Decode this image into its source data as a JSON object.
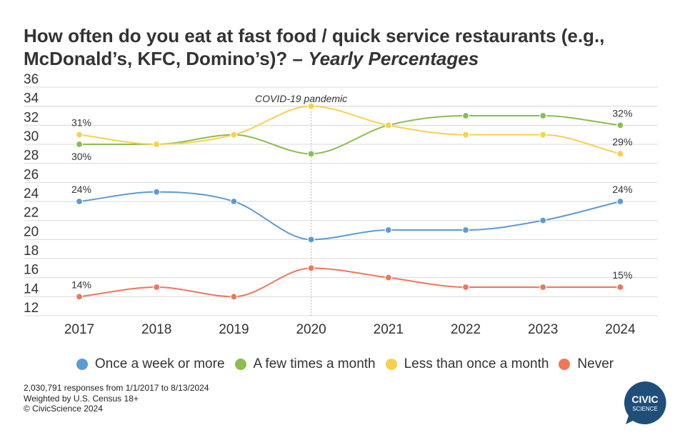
{
  "title": {
    "main": "How often do you eat at fast food / quick service restaurants (e.g., McDonald’s, KFC, Domino’s)? – ",
    "emphasis": "Yearly Percentages"
  },
  "chart_data": {
    "type": "line",
    "title": "How often do you eat at fast food / quick service restaurants (e.g., McDonald’s, KFC, Domino’s)? – Yearly Percentages",
    "categories": [
      "2017",
      "2018",
      "2019",
      "2020",
      "2021",
      "2022",
      "2023",
      "2024"
    ],
    "y_ticks": [
      12,
      14,
      16,
      18,
      20,
      22,
      24,
      26,
      28,
      30,
      32,
      34,
      36
    ],
    "ylim": [
      12,
      36
    ],
    "grid": true,
    "legend_position": "bottom",
    "annotation": {
      "label": "COVID-19 pandemic",
      "at": "2020"
    },
    "series": [
      {
        "name": "Once a week or more",
        "color": "#5b9bd5",
        "values": [
          24,
          25,
          24,
          20,
          21,
          21,
          22,
          24
        ],
        "labels": [
          {
            "index": 0,
            "text": "24%",
            "position": "above"
          },
          {
            "index": 7,
            "text": "24%",
            "position": "above"
          }
        ]
      },
      {
        "name": "A few times a month",
        "color": "#8bbd4f",
        "values": [
          30,
          30,
          31,
          29,
          32,
          33,
          33,
          32
        ],
        "labels": [
          {
            "index": 0,
            "text": "30%",
            "position": "below"
          },
          {
            "index": 7,
            "text": "32%",
            "position": "above"
          }
        ]
      },
      {
        "name": "Less than once a month",
        "color": "#f9d04e",
        "values": [
          31,
          30,
          31,
          34,
          32,
          31,
          31,
          29
        ],
        "labels": [
          {
            "index": 0,
            "text": "31%",
            "position": "above"
          },
          {
            "index": 7,
            "text": "29%",
            "position": "above"
          }
        ]
      },
      {
        "name": "Never",
        "color": "#f0765a",
        "values": [
          14,
          15,
          14,
          17,
          16,
          15,
          15,
          15
        ],
        "labels": [
          {
            "index": 0,
            "text": "14%",
            "position": "above"
          },
          {
            "index": 7,
            "text": "15%",
            "position": "above"
          }
        ]
      }
    ]
  },
  "footnotes": [
    "2,030,791 responses from 1/1/2017 to 8/13/2024",
    "Weighted by U.S. Census 18+",
    "© CivicScience 2024"
  ],
  "logo": {
    "line1": "CIVIC",
    "line2": "SCIENCE",
    "color": "#1f4e79"
  }
}
